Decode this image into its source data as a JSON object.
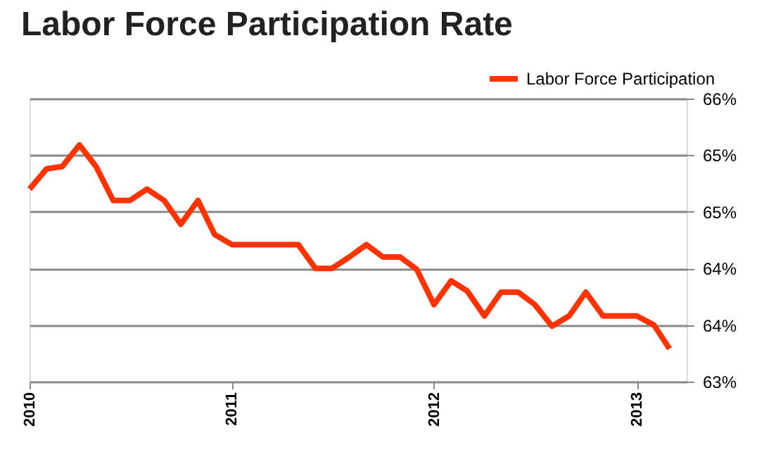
{
  "chart_data": {
    "type": "line",
    "title": "Labor Force Participation Rate",
    "x": [
      "2010-01",
      "2010-02",
      "2010-03",
      "2010-04",
      "2010-05",
      "2010-06",
      "2010-07",
      "2010-08",
      "2010-09",
      "2010-10",
      "2010-11",
      "2010-12",
      "2011-01",
      "2011-02",
      "2011-03",
      "2011-04",
      "2011-05",
      "2011-06",
      "2011-07",
      "2011-08",
      "2011-09",
      "2011-10",
      "2011-11",
      "2011-12",
      "2012-01",
      "2012-02",
      "2012-03",
      "2012-04",
      "2012-05",
      "2012-06",
      "2012-07",
      "2012-08",
      "2012-09",
      "2012-10",
      "2012-11",
      "2012-12",
      "2013-01",
      "2013-02",
      "2013-03"
    ],
    "series": [
      {
        "name": "Labor Force Participation",
        "color": "#ff3300",
        "values": [
          64.7,
          64.88,
          64.9,
          65.09,
          64.9,
          64.6,
          64.6,
          64.7,
          64.6,
          64.39,
          64.6,
          64.3,
          64.21,
          64.21,
          64.21,
          64.21,
          64.21,
          64.0,
          64.0,
          64.1,
          64.21,
          64.1,
          64.1,
          63.99,
          63.68,
          63.89,
          63.8,
          63.58,
          63.79,
          63.79,
          63.68,
          63.49,
          63.58,
          63.79,
          63.58,
          63.58,
          63.58,
          63.5,
          63.29
        ]
      }
    ],
    "xlim": [
      "2010-01",
      "2013-04"
    ],
    "xticks": [
      {
        "value": "2010-01",
        "label": "2010"
      },
      {
        "value": "2011-01",
        "label": "2011"
      },
      {
        "value": "2012-01",
        "label": "2012"
      },
      {
        "value": "2013-01",
        "label": "2013"
      }
    ],
    "ylim": [
      63.0,
      65.5
    ],
    "yticks": [
      {
        "value": 63.0,
        "label": "63%"
      },
      {
        "value": 63.5,
        "label": "64%"
      },
      {
        "value": 64.0,
        "label": "64%"
      },
      {
        "value": 64.5,
        "label": "65%"
      },
      {
        "value": 65.0,
        "label": "65%"
      },
      {
        "value": 65.5,
        "label": "66%"
      }
    ],
    "grid": "y",
    "legend": "top right",
    "marker": "none",
    "line_style": "solid"
  }
}
